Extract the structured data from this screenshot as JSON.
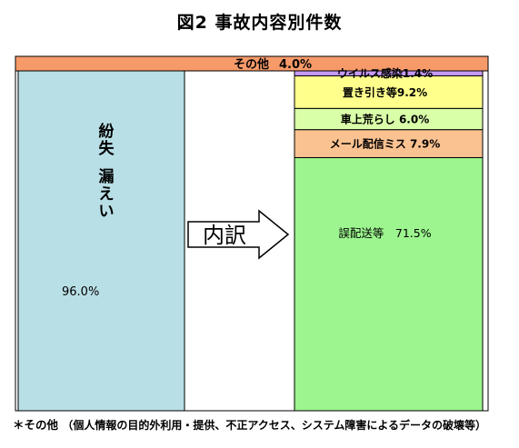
{
  "title": "図2 事故内容別件数",
  "footnote_head": "＊その他",
  "footnote_body": "（個人情報の目的外利用・提供、不正アクセス、システム障害によるデータの破壊等）",
  "arrow_label": "内訳",
  "chart_data": [
    {
      "type": "bar",
      "stacked": true,
      "unit": "%",
      "segments": [
        {
          "label": "紛失・漏えい",
          "label_lines": [
            "紛失",
            "漏えい"
          ],
          "value": 96.0,
          "value_text": "96.0%",
          "color": "#b8dfe6"
        },
        {
          "label": "その他",
          "value": 4.0,
          "value_text": "4.0%",
          "color": "#f79a6a"
        }
      ]
    },
    {
      "type": "bar",
      "stacked": true,
      "unit": "%",
      "segments": [
        {
          "label": "誤配送等",
          "value": 71.5,
          "text": "誤配送等　71.5%",
          "color": "#9cf58e"
        },
        {
          "label": "メール配信ミス",
          "value": 7.9,
          "text": "メール配信ミス 7.9%",
          "color": "#fac291"
        },
        {
          "label": "車上荒らし",
          "value": 6.0,
          "text": "車上荒らし 6.0%",
          "color": "#d9ffa8"
        },
        {
          "label": "置き引き等",
          "value": 9.2,
          "text": "置き引き等9.2%",
          "color": "#ffff8c"
        },
        {
          "label": "ウイルス感染",
          "value": 1.4,
          "text": "ウイルス感染1.4%",
          "color": "#c79af7"
        }
      ]
    }
  ]
}
